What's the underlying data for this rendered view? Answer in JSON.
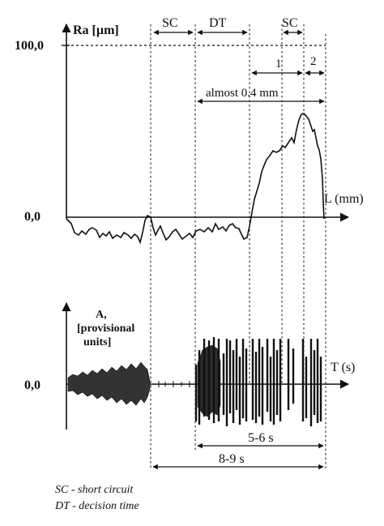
{
  "upper_plot": {
    "y_axis_label": "Ra [µm]",
    "y_tick_top": "100,0",
    "y_tick_zero": "0,0",
    "x_axis_label": "L (mm)"
  },
  "lower_plot": {
    "y_axis_label_line1": "A,",
    "y_axis_label_line2": "[provisional",
    "y_axis_label_line3": "units]",
    "y_tick_zero": "0,0",
    "x_axis_label": "T (s)"
  },
  "annotations": {
    "sc_left": "SC",
    "dt": "DT",
    "sc_right": "SC",
    "zone_1": "1",
    "zone_2": "2",
    "almost": "almost 0.4 mm",
    "time_5_6": "5-6 s",
    "time_8_9": "8-9 s"
  },
  "legend": {
    "sc_def": "SC - short circuit",
    "dt_def": "DT - decision time"
  }
}
